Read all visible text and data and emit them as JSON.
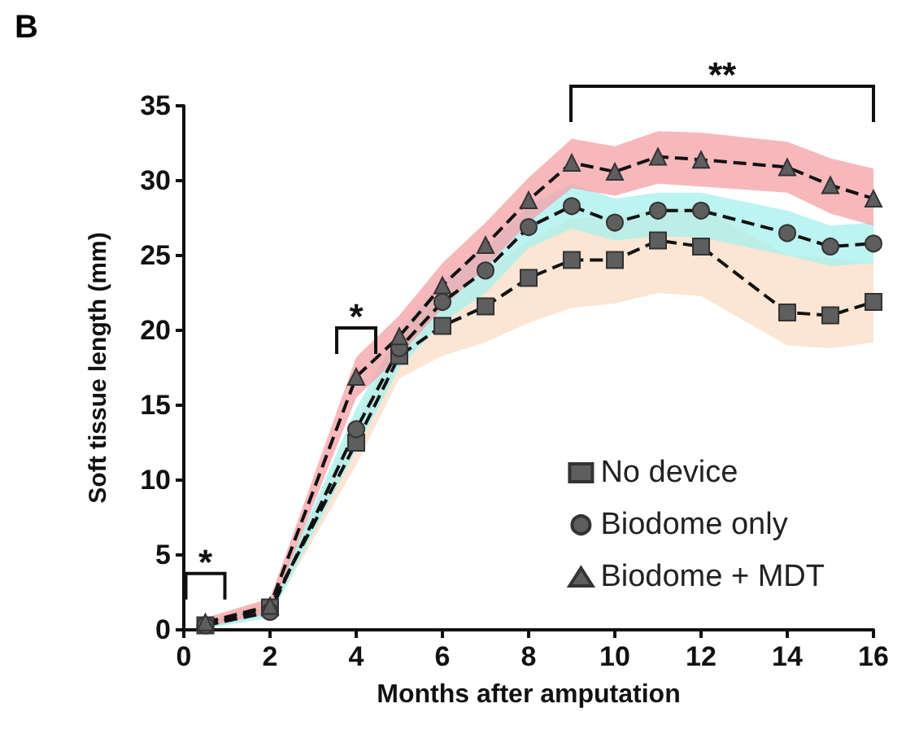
{
  "chart_data": {
    "type": "line",
    "title": "B",
    "xlabel": "Months after amputation",
    "ylabel": "Soft tissue length (mm)",
    "x": [
      0.5,
      2,
      4,
      5,
      6,
      7,
      8,
      9,
      10,
      11,
      12,
      14,
      15,
      16
    ],
    "series": [
      {
        "name": "No device",
        "color": "#5e5e5e",
        "marker": "square",
        "values": [
          0.3,
          1.5,
          12.5,
          18.3,
          20.3,
          21.6,
          23.5,
          24.7,
          24.7,
          26.0,
          25.6,
          21.2,
          21.0,
          21.9
        ],
        "lower": [
          0.1,
          1.0,
          11.0,
          16.8,
          18.3,
          19.2,
          20.5,
          21.5,
          21.8,
          22.5,
          22.3,
          19.0,
          18.8,
          19.2
        ],
        "upper": [
          0.5,
          2.0,
          14.0,
          19.8,
          22.3,
          24.0,
          26.0,
          27.5,
          27.5,
          28.2,
          28.2,
          25.0,
          24.8,
          24.5
        ]
      },
      {
        "name": "Biodome only",
        "color": "#5e5e5e",
        "marker": "circle",
        "values": [
          0.3,
          1.2,
          13.4,
          18.8,
          21.9,
          24.0,
          26.9,
          28.3,
          27.2,
          28.0,
          28.0,
          26.5,
          25.6,
          25.8
        ],
        "lower": [
          0.1,
          0.8,
          12.0,
          17.5,
          20.5,
          22.5,
          25.5,
          26.8,
          26.0,
          26.3,
          26.2,
          25.0,
          24.3,
          24.5
        ],
        "upper": [
          0.5,
          1.6,
          14.8,
          20.0,
          23.3,
          25.5,
          28.3,
          29.8,
          28.8,
          29.2,
          29.2,
          28.0,
          27.0,
          27.2
        ]
      },
      {
        "name": "Biodome + MDT",
        "color": "#5e5e5e",
        "marker": "triangle",
        "values": [
          0.5,
          1.6,
          16.9,
          19.6,
          23.0,
          25.7,
          28.7,
          31.2,
          30.6,
          31.6,
          31.4,
          30.9,
          29.7,
          28.8
        ],
        "lower": [
          0.2,
          1.1,
          15.5,
          18.3,
          21.5,
          24.2,
          27.2,
          29.5,
          29.0,
          29.8,
          29.6,
          29.2,
          27.8,
          27.0
        ],
        "upper": [
          0.8,
          2.1,
          18.2,
          21.0,
          24.5,
          27.2,
          30.2,
          32.8,
          32.3,
          33.3,
          33.2,
          32.6,
          31.5,
          30.8
        ]
      }
    ],
    "line_style": "dashed",
    "legend": "bottom right",
    "grid": false,
    "xlim": [
      0,
      16
    ],
    "xticks": [
      0,
      2,
      4,
      6,
      8,
      10,
      12,
      14,
      16
    ],
    "ylim": [
      0,
      35
    ],
    "yticks": [
      0,
      5,
      10,
      15,
      20,
      25,
      30,
      35
    ],
    "annotations": [
      {
        "text": "*",
        "x": 0.5,
        "y": 0.5
      },
      {
        "text": "*",
        "x": 4,
        "y": 16.9
      },
      "**"
    ]
  }
}
